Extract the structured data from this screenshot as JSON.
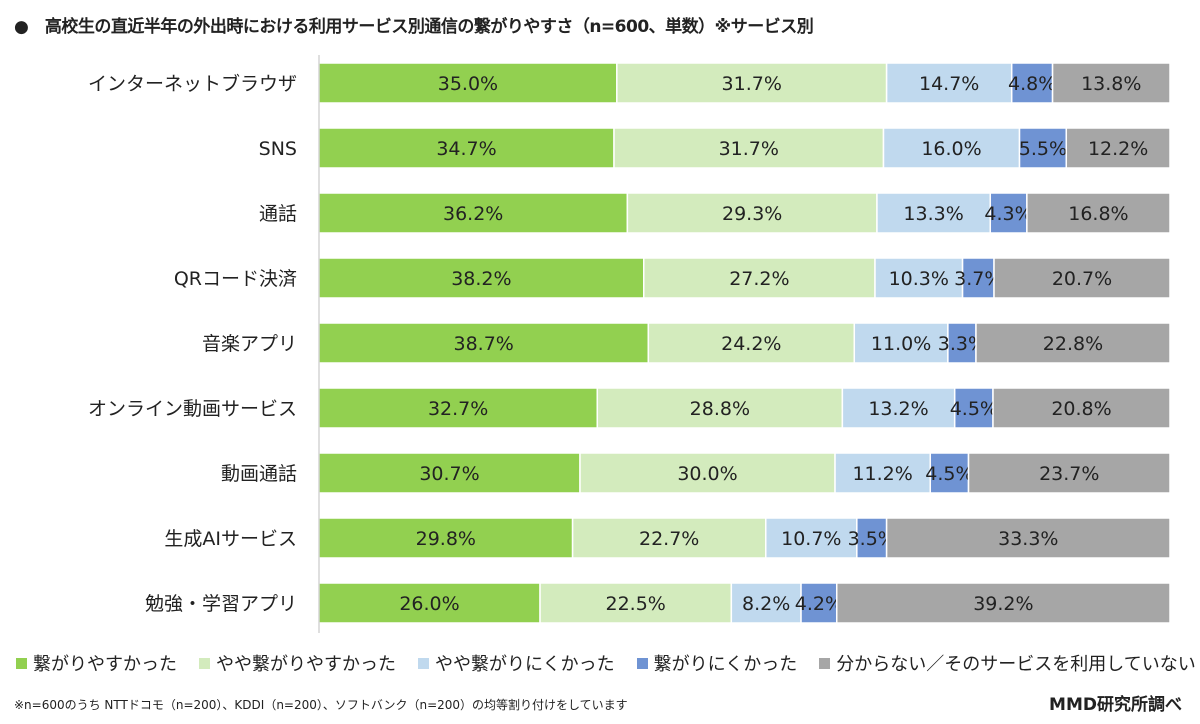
{
  "chart_data": {
    "type": "bar",
    "orientation": "horizontal",
    "stacked": true,
    "percent": true,
    "title": "●　高校生の直近半年の外出時における利用サービス別通信の繋がりやすさ（n=600、単数）※サービス別",
    "categories": [
      "インターネットブラウザ",
      "SNS",
      "通話",
      "QRコード決済",
      "音楽アプリ",
      "オンライン動画サービス",
      "動画通話",
      "生成AIサービス",
      "勉強・学習アプリ"
    ],
    "series": [
      {
        "name": "繋がりやすかった",
        "color": "#92d050",
        "values": [
          35.0,
          34.7,
          36.2,
          38.2,
          38.7,
          32.7,
          30.7,
          29.8,
          26.0
        ]
      },
      {
        "name": "やや繋がりやすかった",
        "color": "#d3ebbd",
        "values": [
          31.7,
          31.7,
          29.3,
          27.2,
          24.2,
          28.8,
          30.0,
          22.7,
          22.5
        ]
      },
      {
        "name": "やや繋がりにくかった",
        "color": "#c0d9ee",
        "values": [
          14.7,
          16.0,
          13.3,
          10.3,
          11.0,
          13.2,
          11.2,
          10.7,
          8.2
        ]
      },
      {
        "name": "繋がりにくかった",
        "color": "#6f93d3",
        "values": [
          4.8,
          5.5,
          4.3,
          3.7,
          3.3,
          4.5,
          4.5,
          3.5,
          4.2
        ]
      },
      {
        "name": "分からない／そのサービスを利用していない",
        "color": "#a6a6a6",
        "values": [
          13.8,
          12.2,
          16.8,
          20.7,
          22.8,
          20.8,
          23.7,
          33.3,
          39.2
        ]
      }
    ],
    "xlim": [
      0,
      100
    ],
    "grid": false,
    "legend_position": "bottom"
  },
  "note": "※n=600のうち NTTドコモ（n=200）、KDDI（n=200）、ソフトバンク（n=200）の均等割り付けをしています",
  "source": "MMD研究所調べ"
}
